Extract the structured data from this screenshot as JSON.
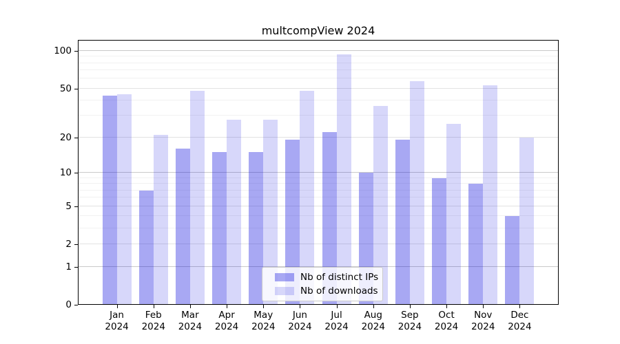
{
  "figure": {
    "background": "#ffffff"
  },
  "chart_data": {
    "type": "bar",
    "title": "multcompView 2024",
    "categories": [
      "Jan",
      "Feb",
      "Mar",
      "Apr",
      "May",
      "Jun",
      "Jul",
      "Aug",
      "Sep",
      "Oct",
      "Nov",
      "Dec"
    ],
    "x_year_label": "2024",
    "series": [
      {
        "name": "Nb of distinct IPs",
        "key": "distinct-ips",
        "color": "rgba(0,0,220,0.34)",
        "values": [
          44,
          7,
          16,
          15,
          15,
          19,
          22,
          10,
          19,
          9,
          8,
          4
        ]
      },
      {
        "name": "Nb of downloads",
        "key": "downloads",
        "color": "rgba(0,0,220,0.155)",
        "values": [
          45,
          21,
          48,
          28,
          28,
          48,
          94,
          36,
          57,
          26,
          53,
          20
        ]
      }
    ],
    "y_axis": {
      "scale": "log1p",
      "ticks": [
        0,
        1,
        2,
        5,
        10,
        20,
        50,
        100
      ],
      "minor_ticks": [
        3,
        4,
        6,
        7,
        8,
        9,
        30,
        40,
        60,
        70,
        80,
        90
      ]
    },
    "grid": true,
    "legend": {
      "position": "bottom-center"
    }
  }
}
